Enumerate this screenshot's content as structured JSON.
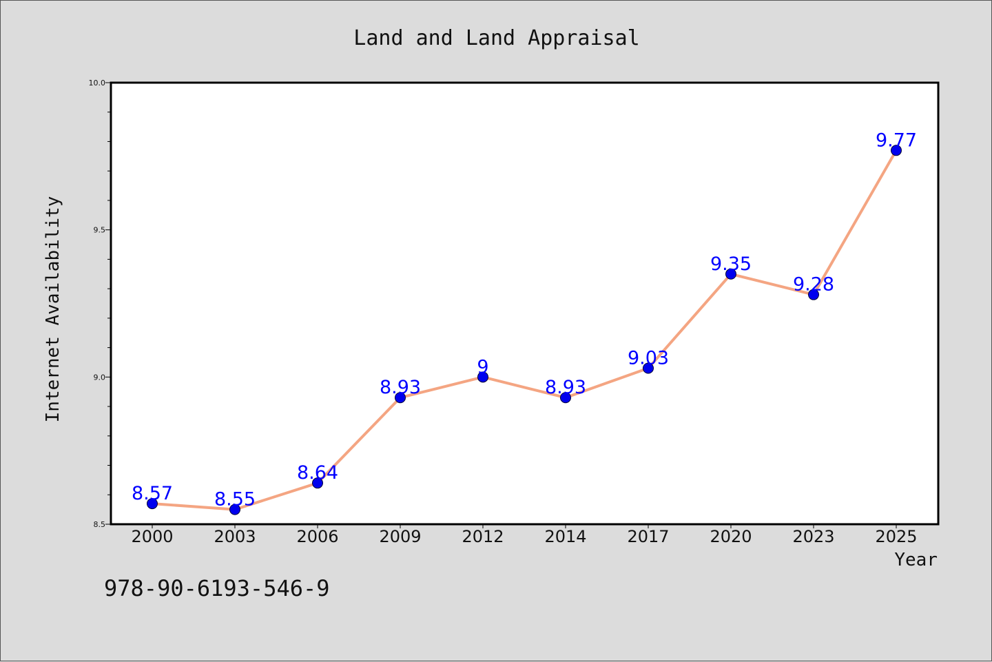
{
  "chart_data": {
    "type": "line",
    "title": "Land and Land Appraisal",
    "xlabel": "Year",
    "ylabel": "Internet Availability",
    "categories": [
      "2000",
      "2003",
      "2006",
      "2009",
      "2012",
      "2014",
      "2017",
      "2020",
      "2023",
      "2025"
    ],
    "series": [
      {
        "values": [
          8.57,
          8.55,
          8.64,
          8.93,
          9.0,
          8.93,
          9.03,
          9.35,
          9.28,
          9.77
        ],
        "labels": [
          "8.57",
          "8.55",
          "8.64",
          "8.93",
          "9",
          "8.93",
          "9.03",
          "9.35",
          "9.28",
          "9.77"
        ],
        "line_color": "#f4a582",
        "marker_color": "#0000ee",
        "label_color": "#0000ff"
      }
    ],
    "ylim": [
      8.5,
      10.0
    ],
    "y_ticks": [
      "8.5",
      "9.0",
      "9.5",
      "10.0"
    ],
    "y_tick_values": [
      8.5,
      9.0,
      9.5,
      10.0
    ],
    "y_minor_step": 0.1,
    "grid": false,
    "legend": "none"
  },
  "footer": {
    "isbn": "978-90-6193-546-9"
  }
}
